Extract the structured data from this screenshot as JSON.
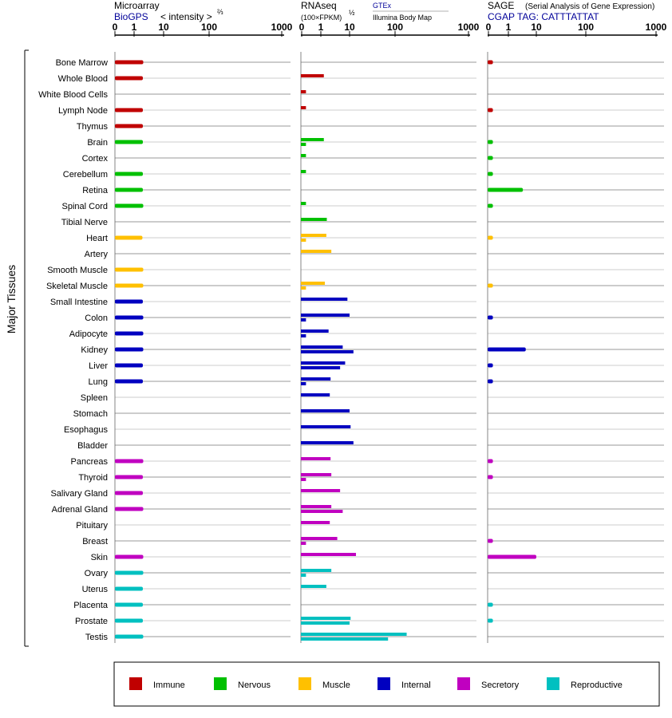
{
  "chart_data": {
    "type": "bar",
    "side_label": "Major Tissues",
    "panels": [
      {
        "key": "micro",
        "title": "Microarray",
        "subtitle": "BioGPS",
        "unit_label": "< intensity >",
        "unit_sup": "⅔",
        "ticks": [
          "0",
          "1",
          "10",
          "100",
          "1000"
        ],
        "tick_values": [
          0,
          1,
          10,
          100,
          1000
        ]
      },
      {
        "key": "rnaseq",
        "title": "RNAseq",
        "unit_label": "(100×FPKM)",
        "unit_sup": "½",
        "source1": "GTEx",
        "source2": "Illumina Body Map",
        "ticks": [
          "0",
          "1",
          "10",
          "100",
          "1000"
        ],
        "tick_values": [
          0,
          1,
          10,
          100,
          1000
        ]
      },
      {
        "key": "sage",
        "title": "SAGE",
        "title_note": "(Serial Analysis of Gene Expression)",
        "subtitle": "CGAP TAG: CATTTATTAT",
        "ticks": [
          "0",
          "1",
          "10",
          "100",
          "1000"
        ],
        "tick_values": [
          0,
          1,
          10,
          100,
          1000
        ]
      }
    ],
    "categories": [
      "Bone Marrow",
      "Whole Blood",
      "White Blood Cells",
      "Lymph Node",
      "Thymus",
      "Brain",
      "Cortex",
      "Cerebellum",
      "Retina",
      "Spinal Cord",
      "Tibial Nerve",
      "Heart",
      "Artery",
      "Smooth Muscle",
      "Skeletal Muscle",
      "Small Intestine",
      "Colon",
      "Adipocyte",
      "Kidney",
      "Liver",
      "Lung",
      "Spleen",
      "Stomach",
      "Esophagus",
      "Bladder",
      "Pancreas",
      "Thyroid",
      "Salivary Gland",
      "Adrenal Gland",
      "Pituitary",
      "Breast",
      "Skin",
      "Ovary",
      "Uterus",
      "Placenta",
      "Prostate",
      "Testis"
    ],
    "groups": [
      "Immune",
      "Immune",
      "Immune",
      "Immune",
      "Immune",
      "Nervous",
      "Nervous",
      "Nervous",
      "Nervous",
      "Nervous",
      "Nervous",
      "Muscle",
      "Muscle",
      "Muscle",
      "Muscle",
      "Internal",
      "Internal",
      "Internal",
      "Internal",
      "Internal",
      "Internal",
      "Internal",
      "Internal",
      "Internal",
      "Internal",
      "Secretory",
      "Secretory",
      "Secretory",
      "Secretory",
      "Secretory",
      "Secretory",
      "Secretory",
      "Reproductive",
      "Reproductive",
      "Reproductive",
      "Reproductive",
      "Reproductive"
    ],
    "legend": [
      {
        "name": "Immune",
        "color": "#c00000"
      },
      {
        "name": "Nervous",
        "color": "#00c000"
      },
      {
        "name": "Muscle",
        "color": "#ffc000"
      },
      {
        "name": "Internal",
        "color": "#0000c0"
      },
      {
        "name": "Secretory",
        "color": "#c000c0"
      },
      {
        "name": "Reproductive",
        "color": "#00c0c0"
      }
    ],
    "series": [
      {
        "name": "Microarray",
        "panel": "micro",
        "values": [
          2.8,
          2.7,
          null,
          2.7,
          2.7,
          2.7,
          null,
          2.7,
          2.7,
          2.8,
          null,
          2.6,
          null,
          2.8,
          2.8,
          2.7,
          2.8,
          2.8,
          2.8,
          2.7,
          2.7,
          null,
          null,
          null,
          null,
          2.8,
          2.7,
          2.7,
          2.8,
          null,
          null,
          2.8,
          2.8,
          2.7,
          2.7,
          2.7,
          2.8
        ]
      },
      {
        "name": "GTEx",
        "panel": "rnaseq",
        "values": [
          null,
          1.5,
          0.05,
          0.05,
          null,
          1.5,
          0.05,
          0.05,
          null,
          0.05,
          2.1,
          2.0,
          3.2,
          null,
          1.7,
          9.0,
          10.0,
          2.5,
          7.0,
          8.0,
          3.0,
          2.8,
          10.0,
          11.0,
          14.0,
          3.0,
          3.2,
          6.0,
          3.2,
          2.8,
          5.0,
          17.0,
          3.2,
          2.0,
          null,
          11.0,
          180.0
        ]
      },
      {
        "name": "Illumina Body Map",
        "panel": "rnaseq",
        "values": [
          null,
          null,
          null,
          null,
          null,
          0.05,
          null,
          null,
          null,
          null,
          null,
          0.05,
          null,
          null,
          0.05,
          null,
          0.05,
          0.05,
          14.0,
          6.0,
          0.05,
          null,
          null,
          null,
          null,
          null,
          0.05,
          null,
          7.0,
          null,
          0.05,
          null,
          0.05,
          null,
          null,
          10.0,
          80.0
        ]
      },
      {
        "name": "SAGE",
        "panel": "sage",
        "values": [
          0.05,
          null,
          null,
          0.05,
          null,
          0.05,
          0.05,
          0.05,
          4.5,
          0.05,
          null,
          0.05,
          null,
          null,
          0.05,
          null,
          0.05,
          null,
          5.5,
          0.05,
          0.05,
          null,
          null,
          null,
          null,
          0.05,
          0.05,
          null,
          null,
          null,
          0.05,
          10.0,
          null,
          null,
          0.05,
          0.05,
          null
        ]
      }
    ]
  }
}
